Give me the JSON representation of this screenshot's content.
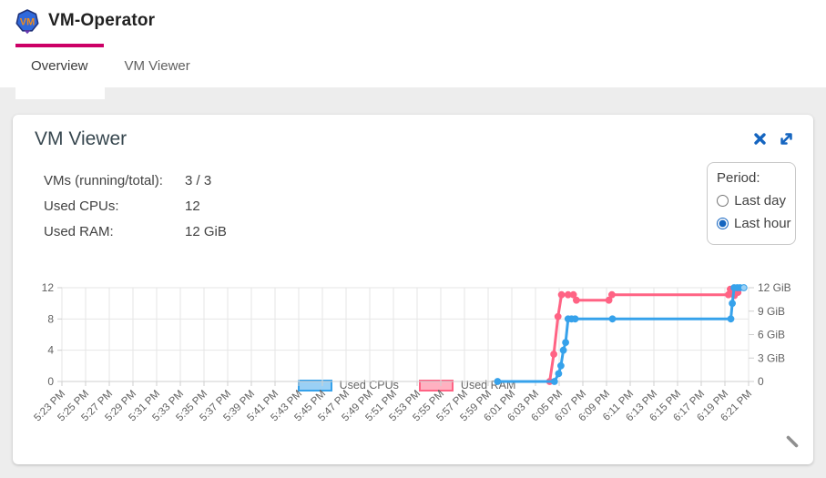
{
  "header": {
    "title": "VM-Operator",
    "logo_text": "VM"
  },
  "tabs": [
    {
      "label": "Overview",
      "active": true
    },
    {
      "label": "VM Viewer",
      "active": false
    }
  ],
  "panel": {
    "title": "VM Viewer",
    "stats": [
      {
        "label": "VMs (running/total):",
        "value": "3 / 3"
      },
      {
        "label": "Used CPUs:",
        "value": "12"
      },
      {
        "label": "Used RAM:",
        "value": "12 GiB"
      }
    ],
    "period": {
      "label": "Period:",
      "options": [
        {
          "label": "Last day",
          "selected": false
        },
        {
          "label": "Last hour",
          "selected": true
        }
      ]
    }
  },
  "colors": {
    "accent": "#cc0066",
    "icon_blue": "#1565c0",
    "grid": "#e6e6e6",
    "axis": "#cfcfcf",
    "tick_text": "#616161"
  },
  "chart_data": {
    "type": "line",
    "title": "",
    "x_tick_interval_minutes": 2,
    "x_ticks": [
      "5:23 PM",
      "5:25 PM",
      "5:27 PM",
      "5:29 PM",
      "5:31 PM",
      "5:33 PM",
      "5:35 PM",
      "5:37 PM",
      "5:39 PM",
      "5:41 PM",
      "5:43 PM",
      "5:45 PM",
      "5:53 PM",
      "5:55 PM",
      "5:57 PM",
      "5:59 PM",
      "6:01 PM",
      "6:03 PM",
      "6:05 PM",
      "6:07 PM",
      "6:09 PM",
      "6:11 PM",
      "6:13 PM",
      "6:15 PM",
      "6:17 PM",
      "6:19 PM",
      "6:21 PM"
    ],
    "x_ticks_full": [
      "5:23 PM",
      "5:25 PM",
      "5:27 PM",
      "5:29 PM",
      "5:31 PM",
      "5:33 PM",
      "5:35 PM",
      "5:37 PM",
      "5:39 PM",
      "5:41 PM",
      "5:43 PM",
      "5:45 PM",
      "5:47 PM",
      "5:49 PM",
      "5:51 PM",
      "5:53 PM",
      "5:55 PM",
      "5:57 PM",
      "5:59 PM",
      "6:01 PM",
      "6:03 PM",
      "6:05 PM",
      "6:07 PM",
      "6:09 PM",
      "6:11 PM",
      "6:13 PM",
      "6:15 PM",
      "6:17 PM",
      "6:19 PM",
      "6:21 PM"
    ],
    "left_axis": {
      "ticks": [
        0,
        4,
        8,
        12
      ],
      "range": [
        0,
        12
      ],
      "suffix": ""
    },
    "right_axis": {
      "ticks": [
        0,
        3,
        6,
        9,
        12
      ],
      "range": [
        0,
        12
      ],
      "suffix": " GiB"
    },
    "legend_position": "top",
    "grid": true,
    "series": [
      {
        "name": "Used RAM",
        "axis": "right",
        "line_color": "#ff6384",
        "fill_color": "#ffb1c1",
        "points_minutes_after_5_23pm_vs_gib": [
          [
            41.2,
            0
          ],
          [
            41.55,
            3.5
          ],
          [
            41.9,
            8.3
          ],
          [
            42.2,
            11.1
          ],
          [
            42.75,
            11.1
          ],
          [
            43.2,
            11.1
          ],
          [
            43.45,
            10.4
          ],
          [
            46.2,
            10.4
          ],
          [
            46.45,
            11.1
          ],
          [
            56.3,
            11.1
          ],
          [
            56.45,
            11.8
          ],
          [
            56.8,
            11.0
          ],
          [
            57.1,
            11.4
          ]
        ]
      },
      {
        "name": "Used CPUs",
        "axis": "left",
        "line_color": "#36a2eb",
        "fill_color": "#9ad0f5",
        "last_point_muted": true,
        "points_minutes_after_5_23pm_vs_cpus": [
          [
            36.8,
            0
          ],
          [
            41.6,
            0
          ],
          [
            41.95,
            1
          ],
          [
            42.15,
            2
          ],
          [
            42.35,
            4
          ],
          [
            42.55,
            5
          ],
          [
            42.75,
            8
          ],
          [
            43.05,
            8
          ],
          [
            43.35,
            8
          ],
          [
            46.5,
            8
          ],
          [
            56.5,
            8
          ],
          [
            56.62,
            10
          ],
          [
            56.78,
            12
          ],
          [
            57.05,
            12
          ],
          [
            57.28,
            12
          ],
          [
            57.6,
            12
          ]
        ]
      }
    ]
  }
}
